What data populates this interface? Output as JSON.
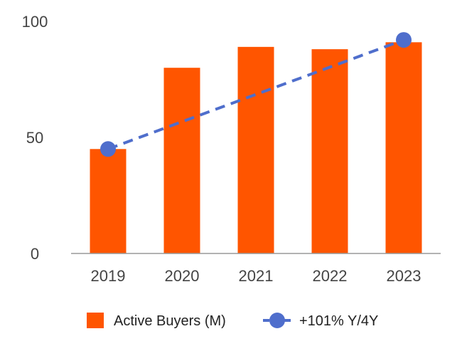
{
  "chart_data": {
    "type": "bar",
    "categories": [
      "2019",
      "2020",
      "2021",
      "2022",
      "2023"
    ],
    "series": [
      {
        "name": "Active Buyers (M)",
        "type": "bar",
        "values": [
          45,
          80,
          89,
          88,
          91
        ],
        "color": "#FF5500"
      },
      {
        "name": "+101% Y/4Y",
        "type": "line",
        "style": "dashed",
        "points": [
          {
            "x": "2019",
            "y": 45
          },
          {
            "x": "2023",
            "y": 92
          }
        ],
        "color": "#4F6ECC"
      }
    ],
    "y_ticks": [
      "0",
      "50",
      "100"
    ],
    "ylim": [
      0,
      100
    ],
    "grid": false,
    "legend": "bottom",
    "title": "",
    "xlabel": "",
    "ylabel": ""
  }
}
